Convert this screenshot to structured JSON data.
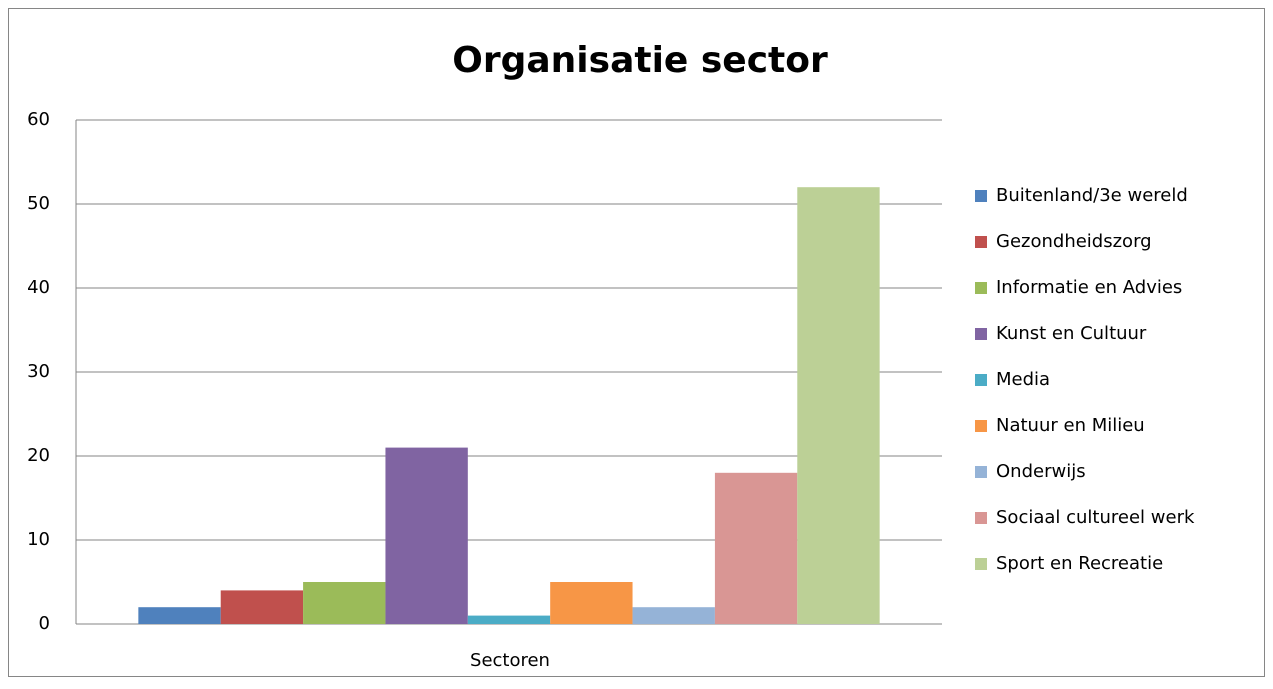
{
  "chart_data": {
    "type": "bar",
    "title": "Organisatie sector",
    "x_label": "Sectoren",
    "categories": [
      "Sectoren"
    ],
    "series": [
      {
        "name": "Buitenland/3e wereld",
        "color": "#4f81bd",
        "values": [
          2
        ]
      },
      {
        "name": "Gezondheidszorg",
        "color": "#c0504d",
        "values": [
          4
        ]
      },
      {
        "name": "Informatie en Advies",
        "color": "#9bbb59",
        "values": [
          5
        ]
      },
      {
        "name": "Kunst en Cultuur",
        "color": "#8064a2",
        "values": [
          21
        ]
      },
      {
        "name": "Media",
        "color": "#4bacc6",
        "values": [
          1
        ]
      },
      {
        "name": "Natuur en Milieu",
        "color": "#f79646",
        "values": [
          5
        ]
      },
      {
        "name": "Onderwijs",
        "color": "#95b3d7",
        "values": [
          2
        ]
      },
      {
        "name": "Sociaal cultureel werk",
        "color": "#d99694",
        "values": [
          18
        ]
      },
      {
        "name": "Sport en Recreatie",
        "color": "#bcd096",
        "values": [
          52
        ]
      }
    ],
    "ylim": [
      0,
      60
    ],
    "yticks": [
      0,
      10,
      20,
      30,
      40,
      50,
      60
    ],
    "grid": true,
    "legend": "right"
  }
}
